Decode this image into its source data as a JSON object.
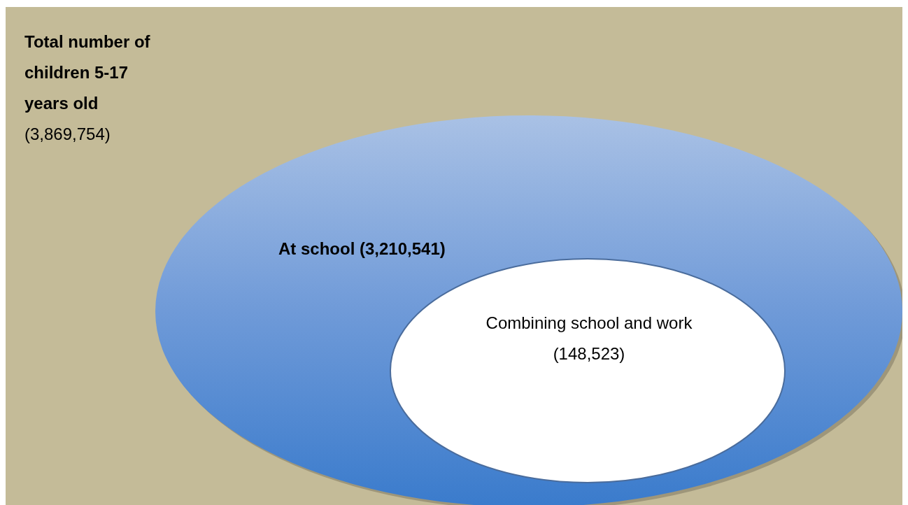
{
  "chart_data": {
    "type": "other",
    "categories": [
      "Total number of children 5-17 years old",
      "At school",
      "Combining school and work"
    ],
    "values": [
      3869754,
      3210541,
      148523
    ],
    "value_labels": [
      "(3,869,754)",
      "(3,210,541)",
      "(148,523)"
    ],
    "colors": [
      "#c4bb98",
      "#6f9ad8",
      "#ffffff"
    ]
  }
}
